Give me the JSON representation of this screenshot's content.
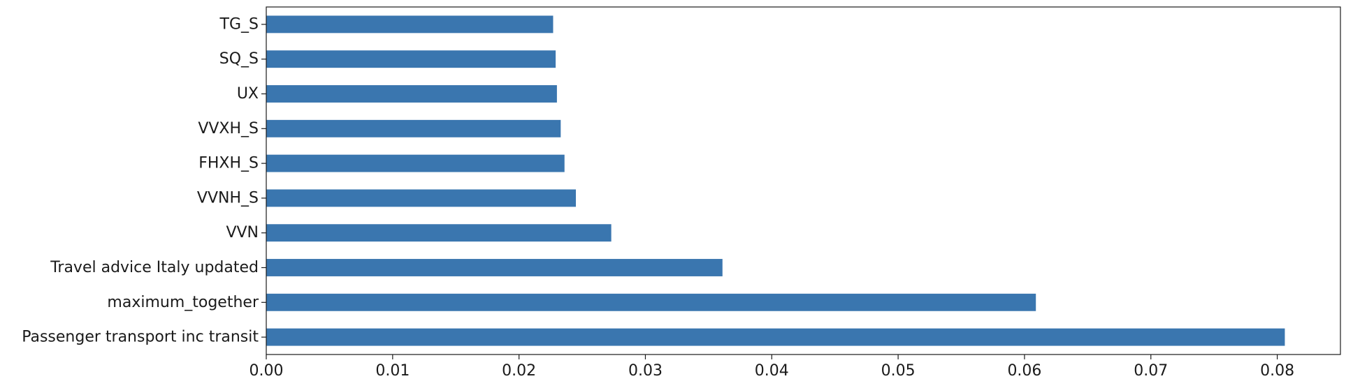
{
  "chart_data": {
    "type": "bar",
    "orientation": "horizontal",
    "title": "",
    "xlabel": "",
    "ylabel": "",
    "xlim": [
      0,
      0.085
    ],
    "grid": false,
    "legend": "none",
    "bar_color": "#3a76af",
    "x_ticks": [
      0.0,
      0.01,
      0.02,
      0.03,
      0.04,
      0.05,
      0.06,
      0.07,
      0.08
    ],
    "x_tick_labels": [
      "0.00",
      "0.01",
      "0.02",
      "0.03",
      "0.04",
      "0.05",
      "0.06",
      "0.07",
      "0.08"
    ],
    "categories": [
      "TG_S",
      "SQ_S",
      "UX",
      "VVXH_S",
      "FHXH_S",
      "VVNH_S",
      "VVN",
      "Travel advice Italy updated",
      "maximum_together",
      "Passenger transport inc transit"
    ],
    "values": [
      0.0227,
      0.0229,
      0.023,
      0.0233,
      0.0236,
      0.0245,
      0.0273,
      0.0361,
      0.0609,
      0.0806
    ]
  }
}
